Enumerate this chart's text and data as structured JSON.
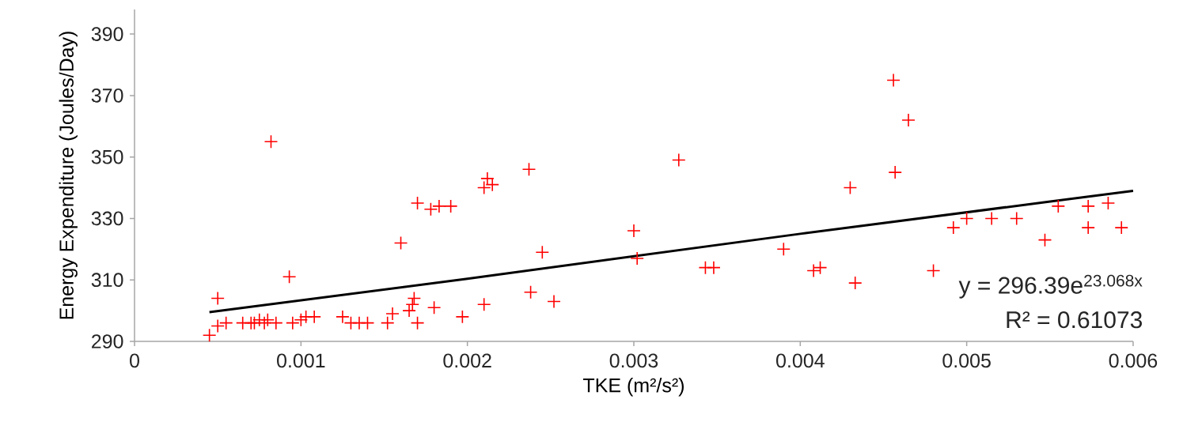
{
  "chart_data": {
    "type": "scatter",
    "xlabel": "TKE (m²/s²)",
    "ylabel": "Energy Expenditure (Joules/Day)",
    "xlim": [
      0,
      0.006
    ],
    "ylim": [
      290,
      398
    ],
    "xticks": [
      0,
      0.001,
      0.002,
      0.003,
      0.004,
      0.005,
      0.006
    ],
    "yticks": [
      290,
      310,
      330,
      350,
      370,
      390
    ],
    "grid": false,
    "series": [
      {
        "color": "#ff0000",
        "marker": "cross",
        "x": [
          0.00045,
          0.0005,
          0.0005,
          0.00055,
          0.00065,
          0.0007,
          0.00072,
          0.00075,
          0.00078,
          0.0008,
          0.00082,
          0.00085,
          0.00093,
          0.00095,
          0.001,
          0.00103,
          0.00108,
          0.00125,
          0.0013,
          0.00135,
          0.0014,
          0.00152,
          0.00155,
          0.0016,
          0.00165,
          0.00167,
          0.00168,
          0.0017,
          0.0017,
          0.0018,
          0.00178,
          0.00183,
          0.0019,
          0.00197,
          0.0021,
          0.0021,
          0.00212,
          0.00215,
          0.00237,
          0.00238,
          0.00245,
          0.00252,
          0.003,
          0.00302,
          0.00327,
          0.00343,
          0.00348,
          0.0039,
          0.00408,
          0.00412,
          0.0043,
          0.00433,
          0.00456,
          0.00457,
          0.00465,
          0.0048,
          0.00492,
          0.005,
          0.00515,
          0.0053,
          0.00547,
          0.00555,
          0.00573,
          0.00573,
          0.00585,
          0.00593
        ],
        "values": [
          292,
          295,
          304,
          296,
          296,
          296,
          296,
          297,
          296,
          297,
          355,
          296,
          311,
          296,
          297,
          298,
          298,
          298,
          296,
          296,
          296,
          296,
          299,
          322,
          300,
          302,
          304,
          296,
          335,
          301,
          333,
          334,
          334,
          298,
          302,
          340,
          343,
          341,
          346,
          306,
          319,
          303,
          326,
          317,
          349,
          314,
          314,
          320,
          313,
          314,
          340,
          309,
          375,
          345,
          362,
          313,
          327,
          330,
          330,
          330,
          323,
          334,
          334,
          327,
          335,
          327
        ]
      },
      {
        "type": "line",
        "color": "#000000",
        "marker": "none",
        "line_style": "solid",
        "x": [
          0.00045,
          0.002,
          0.004,
          0.006
        ],
        "values": [
          299.5,
          310.4,
          325.0,
          339.0
        ]
      }
    ],
    "annotations": [
      "y = 296.39e$^{23.068x}$",
      "R² = 0.61073"
    ]
  }
}
